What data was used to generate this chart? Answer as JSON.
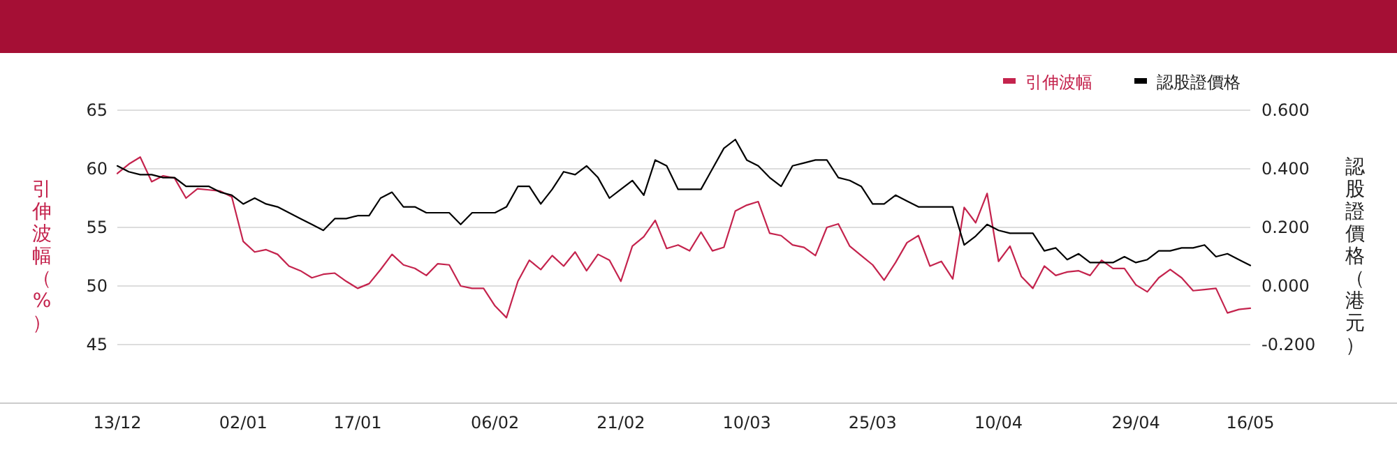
{
  "chart_data": {
    "type": "line",
    "ylabel": "引伸波幅（%）",
    "y2label": "認股證價格（港元）",
    "categories": [
      "13/12",
      null,
      null,
      null,
      null,
      null,
      null,
      null,
      null,
      null,
      null,
      "02/01",
      null,
      null,
      null,
      null,
      null,
      null,
      null,
      null,
      null,
      "17/01",
      null,
      null,
      null,
      null,
      null,
      null,
      null,
      null,
      null,
      null,
      null,
      "06/02",
      null,
      null,
      null,
      null,
      null,
      null,
      null,
      null,
      null,
      null,
      "21/02",
      null,
      null,
      null,
      null,
      null,
      null,
      null,
      null,
      null,
      null,
      "10/03",
      null,
      null,
      null,
      null,
      null,
      null,
      null,
      null,
      null,
      null,
      "25/03",
      null,
      null,
      null,
      null,
      null,
      null,
      null,
      null,
      null,
      null,
      "10/04",
      null,
      null,
      null,
      null,
      null,
      null,
      null,
      null,
      null,
      null,
      null,
      "29/04",
      null,
      null,
      null,
      null,
      null,
      null,
      null,
      null,
      null,
      "16/05"
    ],
    "series": [
      {
        "name": "引伸波幅",
        "color": "#c4234d",
        "values": [
          59.6,
          60.4,
          61.0,
          58.9,
          59.4,
          59.2,
          57.5,
          58.3,
          58.2,
          58.1,
          57.6,
          53.8,
          52.9,
          53.1,
          52.7,
          51.7,
          51.3,
          50.7,
          51.0,
          51.1,
          50.4,
          49.8,
          50.2,
          51.4,
          52.7,
          51.8,
          51.5,
          50.9,
          51.9,
          51.8,
          50.0,
          49.8,
          49.8,
          48.3,
          47.3,
          50.4,
          52.2,
          51.4,
          52.6,
          51.7,
          52.9,
          51.3,
          52.7,
          52.2,
          50.4,
          53.4,
          54.2,
          55.6,
          53.2,
          53.5,
          53.0,
          54.6,
          53.0,
          53.3,
          56.4,
          56.9,
          57.2,
          54.5,
          54.3,
          53.5,
          53.3,
          52.6,
          55.0,
          55.3,
          53.4,
          52.6,
          51.8,
          50.5,
          52.0,
          53.7,
          54.3,
          51.7,
          52.1,
          50.6,
          56.7,
          55.4,
          57.9,
          52.1,
          53.4,
          50.8,
          49.8,
          51.7,
          50.9,
          51.2,
          51.3,
          50.9,
          52.2,
          51.5,
          51.5,
          50.1,
          49.5,
          50.7,
          51.4,
          50.7,
          49.6,
          49.7,
          49.8,
          47.7,
          48.0,
          48.1
        ]
      },
      {
        "name": "認股證價格",
        "color": "#000000",
        "axis": "y2",
        "values": [
          0.41,
          0.39,
          0.38,
          0.38,
          0.37,
          0.37,
          0.34,
          0.34,
          0.34,
          0.32,
          0.31,
          0.28,
          0.3,
          0.28,
          0.27,
          0.25,
          0.23,
          0.21,
          0.19,
          0.23,
          0.23,
          0.24,
          0.24,
          0.3,
          0.32,
          0.27,
          0.27,
          0.25,
          0.25,
          0.25,
          0.21,
          0.25,
          0.25,
          0.25,
          0.27,
          0.34,
          0.34,
          0.28,
          0.33,
          0.39,
          0.38,
          0.41,
          0.37,
          0.3,
          0.33,
          0.36,
          0.31,
          0.43,
          0.41,
          0.33,
          0.33,
          0.33,
          0.4,
          0.47,
          0.5,
          0.43,
          0.41,
          0.37,
          0.34,
          0.41,
          0.42,
          0.43,
          0.43,
          0.37,
          0.36,
          0.34,
          0.28,
          0.28,
          0.31,
          0.29,
          0.27,
          0.27,
          0.27,
          0.27,
          0.14,
          0.17,
          0.21,
          0.19,
          0.18,
          0.18,
          0.18,
          0.12,
          0.13,
          0.09,
          0.11,
          0.08,
          0.08,
          0.08,
          0.1,
          0.08,
          0.09,
          0.12,
          0.12,
          0.13,
          0.13,
          0.14,
          0.1,
          0.11,
          0.09,
          0.07
        ]
      }
    ],
    "ylim": [
      40,
      65
    ],
    "yticks": [
      45,
      50,
      55,
      60,
      65
    ],
    "y2lim": [
      -0.4,
      0.6
    ],
    "y2ticks": [
      {
        "value": -0.2,
        "label": "-0.200"
      },
      {
        "value": 0,
        "label": "0.000"
      },
      {
        "value": 0.2,
        "label": "0.200"
      },
      {
        "value": 0.4,
        "label": "0.400"
      },
      {
        "value": 0.6,
        "label": "0.600"
      }
    ],
    "grid": "y",
    "legend": "top right",
    "marker": "none",
    "line_style": "solid"
  }
}
